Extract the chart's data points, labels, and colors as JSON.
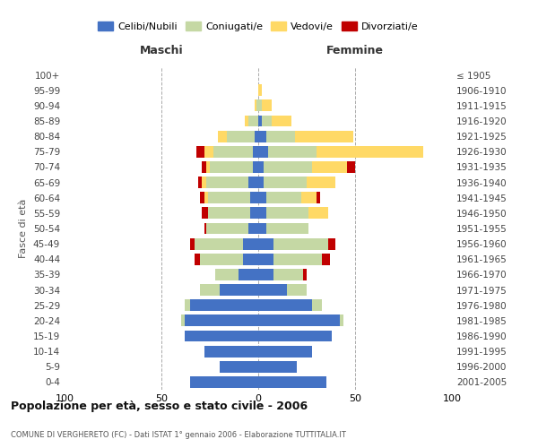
{
  "age_groups": [
    "0-4",
    "5-9",
    "10-14",
    "15-19",
    "20-24",
    "25-29",
    "30-34",
    "35-39",
    "40-44",
    "45-49",
    "50-54",
    "55-59",
    "60-64",
    "65-69",
    "70-74",
    "75-79",
    "80-84",
    "85-89",
    "90-94",
    "95-99",
    "100+"
  ],
  "birth_years": [
    "2001-2005",
    "1996-2000",
    "1991-1995",
    "1986-1990",
    "1981-1985",
    "1976-1980",
    "1971-1975",
    "1966-1970",
    "1961-1965",
    "1956-1960",
    "1951-1955",
    "1946-1950",
    "1941-1945",
    "1936-1940",
    "1931-1935",
    "1926-1930",
    "1921-1925",
    "1916-1920",
    "1911-1915",
    "1906-1910",
    "≤ 1905"
  ],
  "colors": {
    "celibi": "#4472c4",
    "coniugati": "#c5d8a4",
    "vedovi": "#ffd966",
    "divorziati": "#c00000"
  },
  "males": {
    "celibi": [
      35,
      20,
      28,
      38,
      38,
      35,
      20,
      10,
      8,
      8,
      5,
      4,
      4,
      5,
      3,
      3,
      2,
      0,
      0,
      0,
      0
    ],
    "coniugati": [
      0,
      0,
      0,
      0,
      2,
      3,
      10,
      12,
      22,
      25,
      22,
      22,
      22,
      22,
      22,
      20,
      14,
      5,
      1,
      0,
      0
    ],
    "vedovi": [
      0,
      0,
      0,
      0,
      0,
      0,
      0,
      0,
      0,
      0,
      0,
      0,
      2,
      2,
      2,
      5,
      5,
      2,
      1,
      0,
      0
    ],
    "divorziati": [
      0,
      0,
      0,
      0,
      0,
      0,
      0,
      0,
      3,
      2,
      1,
      3,
      2,
      2,
      2,
      4,
      0,
      0,
      0,
      0,
      0
    ]
  },
  "females": {
    "nubili": [
      35,
      20,
      28,
      38,
      42,
      28,
      15,
      8,
      8,
      8,
      4,
      4,
      4,
      3,
      3,
      5,
      4,
      2,
      0,
      0,
      0
    ],
    "coniugate": [
      0,
      0,
      0,
      0,
      2,
      5,
      10,
      15,
      25,
      28,
      22,
      22,
      18,
      22,
      25,
      25,
      15,
      5,
      2,
      0,
      0
    ],
    "vedove": [
      0,
      0,
      0,
      0,
      0,
      0,
      0,
      0,
      0,
      0,
      0,
      10,
      8,
      15,
      18,
      55,
      30,
      10,
      5,
      2,
      0
    ],
    "divorziate": [
      0,
      0,
      0,
      0,
      0,
      0,
      0,
      2,
      4,
      4,
      0,
      0,
      2,
      0,
      4,
      0,
      0,
      0,
      0,
      0,
      0
    ]
  },
  "title": "Popolazione per età, sesso e stato civile - 2006",
  "subtitle": "COMUNE DI VERGHERETO (FC) - Dati ISTAT 1° gennaio 2006 - Elaborazione TUTTITALIA.IT",
  "xlabel_left": "Maschi",
  "xlabel_right": "Femmine",
  "ylabel_left": "Fasce di età",
  "xlim": 100,
  "legend_labels": [
    "Celibi/Nubili",
    "Coniugati/e",
    "Vedovi/e",
    "Divorziati/e"
  ],
  "background_color": "#ffffff",
  "grid_color": "#cccccc"
}
